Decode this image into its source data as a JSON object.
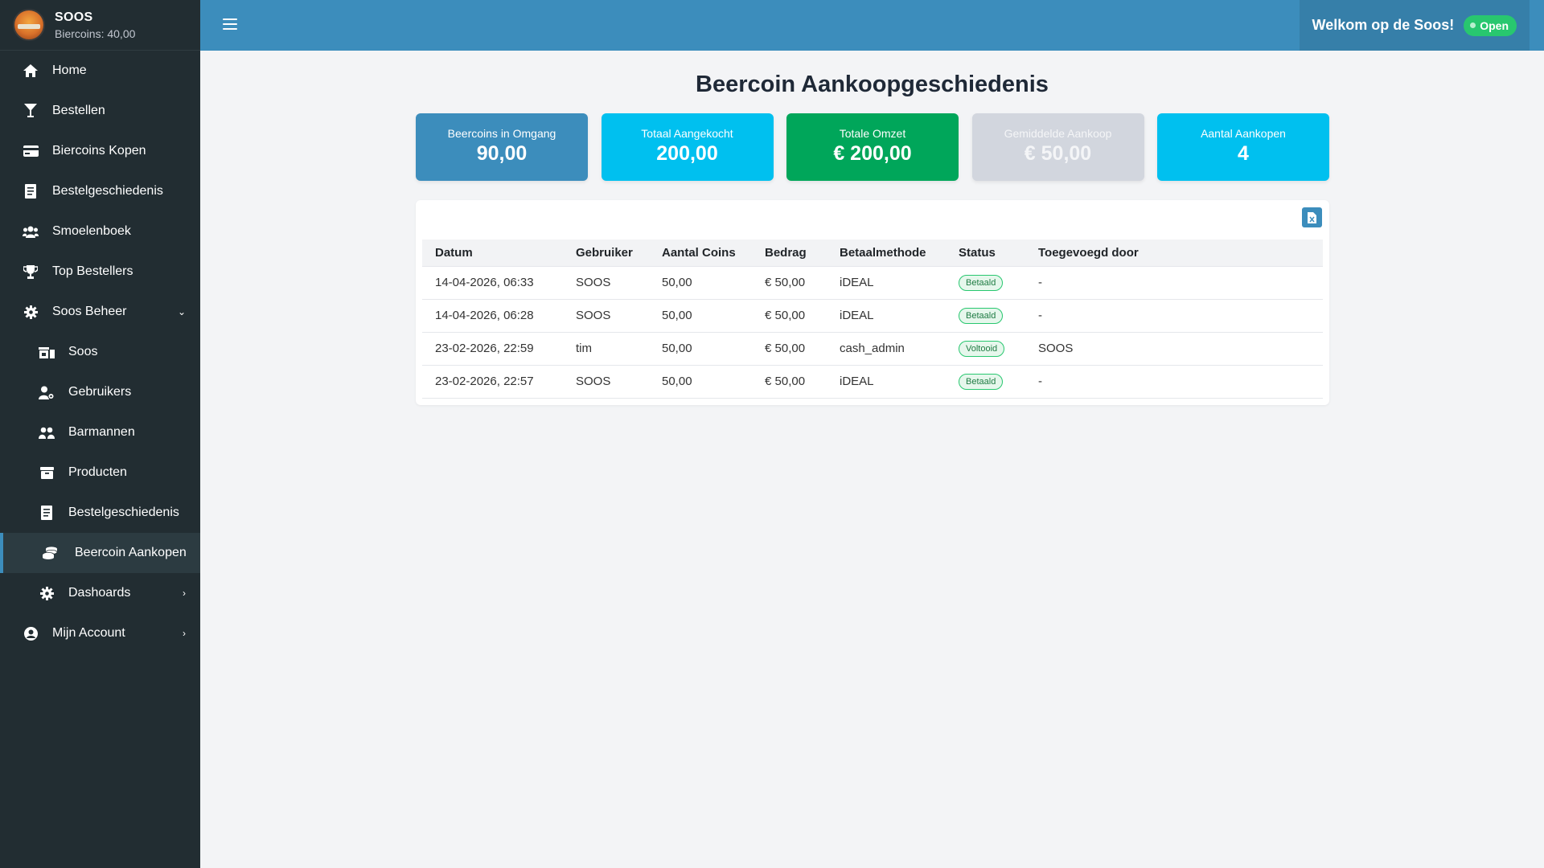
{
  "brand": {
    "name": "SOOS",
    "coins": "Biercoins: 40,00"
  },
  "sidebar": {
    "items": [
      {
        "label": "Home",
        "icon": "home-icon"
      },
      {
        "label": "Bestellen",
        "icon": "cocktail-icon"
      },
      {
        "label": "Biercoins Kopen",
        "icon": "credit-card-icon"
      },
      {
        "label": "Bestelgeschiedenis",
        "icon": "receipt-icon"
      },
      {
        "label": "Smoelenboek",
        "icon": "users-icon"
      },
      {
        "label": "Top Bestellers",
        "icon": "trophy-icon"
      },
      {
        "label": "Soos Beheer",
        "icon": "gear-icon"
      },
      {
        "label": "Soos",
        "icon": "store-icon"
      },
      {
        "label": "Gebruikers",
        "icon": "user-gear-icon"
      },
      {
        "label": "Barmannen",
        "icon": "barmen-icon"
      },
      {
        "label": "Producten",
        "icon": "box-icon"
      },
      {
        "label": "Bestelgeschiedenis",
        "icon": "receipt-icon"
      },
      {
        "label": "Beercoin Aankopen",
        "icon": "coins-icon"
      },
      {
        "label": "Dashoards",
        "icon": "gear-icon"
      },
      {
        "label": "Mijn Account",
        "icon": "user-circle-icon"
      }
    ]
  },
  "header": {
    "welcome": "Welkom op de Soos!",
    "status": "Open"
  },
  "page": {
    "title": "Beercoin Aankoopgeschiedenis"
  },
  "stats": [
    {
      "label": "Beercoins in Omgang",
      "value": "90,00",
      "color": "#3c8dbc"
    },
    {
      "label": "Totaal Aangekocht",
      "value": "200,00",
      "color": "#00c0ef"
    },
    {
      "label": "Totale Omzet",
      "value": "€ 200,00",
      "color": "#00a65a"
    },
    {
      "label": "Gemiddelde Aankoop",
      "value": "€ 50,00",
      "color": "#d2d6de"
    },
    {
      "label": "Aantal Aankopen",
      "value": "4",
      "color": "#00c0ef"
    }
  ],
  "table": {
    "columns": [
      "Datum",
      "Gebruiker",
      "Aantal Coins",
      "Bedrag",
      "Betaalmethode",
      "Status",
      "Toegevoegd door"
    ],
    "rows": [
      [
        "14-04-2026, 06:33",
        "SOOS",
        "50,00",
        "€ 50,00",
        "iDEAL",
        "Betaald",
        "-"
      ],
      [
        "14-04-2026, 06:28",
        "SOOS",
        "50,00",
        "€ 50,00",
        "iDEAL",
        "Betaald",
        "-"
      ],
      [
        "23-02-2026, 22:59",
        "tim",
        "50,00",
        "€ 50,00",
        "cash_admin",
        "Voltooid",
        "SOOS"
      ],
      [
        "23-02-2026, 22:57",
        "SOOS",
        "50,00",
        "€ 50,00",
        "iDEAL",
        "Betaald",
        "-"
      ]
    ]
  }
}
